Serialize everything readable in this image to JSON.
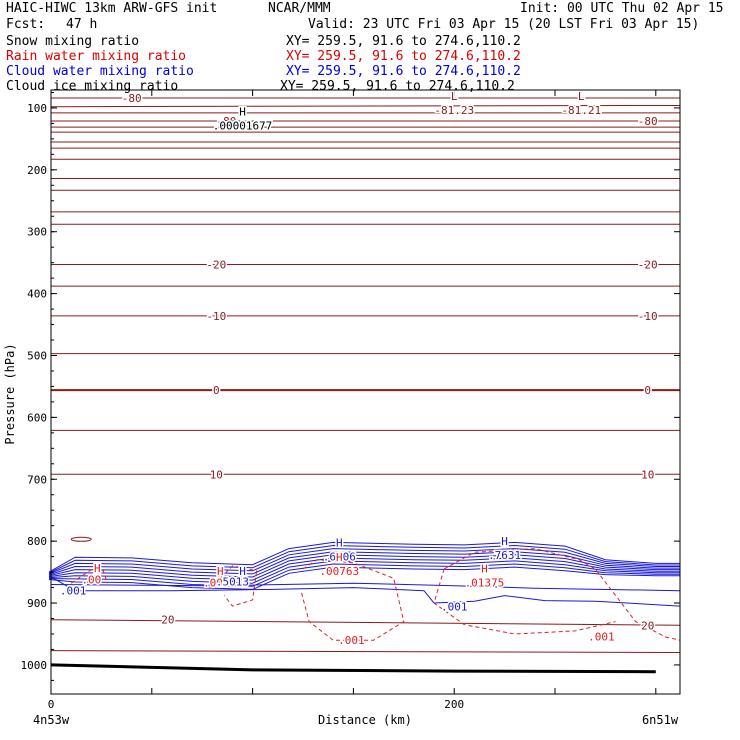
{
  "header": {
    "model": "HAIC-HIWC 13km ARW-GFS init",
    "org": "NCAR/MMM",
    "init": "Init: 00 UTC Thu 02 Apr 15",
    "fcst_label": "Fcst:",
    "fcst_value": "47 h",
    "valid": "Valid: 23 UTC Fri 03 Apr 15 (20 LST Fri 03 Apr 15)"
  },
  "fields": [
    {
      "name": "Snow mixing ratio",
      "xy": "XY= 259.5, 91.6 to 274.6,110.2",
      "color": "#000000"
    },
    {
      "name": "Rain water mixing ratio",
      "xy": "XY= 259.5, 91.6 to 274.6,110.2",
      "color": "#e00000"
    },
    {
      "name": "Cloud water mixing ratio",
      "xy": "XY= 259.5, 91.6 to 274.6,110.2",
      "color": "#0000e0"
    },
    {
      "name": "Cloud ice mixing ratio",
      "xy": "XY= 259.5, 91.6 to 274.6,110.2",
      "color": "#000000"
    }
  ],
  "chart_data": {
    "type": "contour",
    "xlabel": "Distance (km)",
    "ylabel": "Pressure (hPa)",
    "xlim": [
      0,
      312
    ],
    "ylim": [
      1047,
      71
    ],
    "x_ticks": [
      0,
      200
    ],
    "y_ticks": [
      100,
      200,
      300,
      400,
      500,
      600,
      700,
      800,
      900,
      1000
    ],
    "corner_labels": {
      "left": "4n53w",
      "right": "6n51w"
    },
    "colors": {
      "temperature": "#8b1a1a",
      "cloud_water": "#1a1ad6",
      "rain": "#e02020",
      "ground": "#000000"
    },
    "temperature_contours": [
      {
        "label": "-80",
        "p_left": 84,
        "p_right": 84
      },
      {
        "label": "",
        "p_left": 98,
        "p_right": 96
      },
      {
        "label": "",
        "p_left": 108,
        "p_right": 108
      },
      {
        "label": "-80",
        "p_left": 121,
        "p_right": 121
      },
      {
        "label": "",
        "p_left": 131,
        "p_right": 131
      },
      {
        "label": "",
        "p_left": 139,
        "p_right": 139
      },
      {
        "label": "",
        "p_left": 155,
        "p_right": 155
      },
      {
        "label": "",
        "p_left": 165,
        "p_right": 165
      },
      {
        "label": "",
        "p_left": 183,
        "p_right": 183
      },
      {
        "label": "",
        "p_left": 214,
        "p_right": 214
      },
      {
        "label": "",
        "p_left": 233,
        "p_right": 233
      },
      {
        "label": "",
        "p_left": 268,
        "p_right": 268
      },
      {
        "label": "",
        "p_left": 288,
        "p_right": 288
      },
      {
        "label": "-20",
        "p_left": 353,
        "p_right": 353
      },
      {
        "label": "",
        "p_left": 388,
        "p_right": 388
      },
      {
        "label": "-10",
        "p_left": 436,
        "p_right": 436
      },
      {
        "label": "",
        "p_left": 497,
        "p_right": 497
      },
      {
        "label": "0",
        "p_left": 556,
        "p_right": 556
      },
      {
        "label": "",
        "p_left": 621,
        "p_right": 621
      },
      {
        "label": "10",
        "p_left": 692,
        "p_right": 692
      },
      {
        "label": "20",
        "p_left": 927,
        "p_right": 936
      },
      {
        "label": "",
        "p_left": 977,
        "p_right": 980
      }
    ],
    "extrema": [
      {
        "kind": "L",
        "value": "-81.23",
        "x": 200,
        "p": 97
      },
      {
        "kind": "L",
        "value": "-81.21",
        "x": 263,
        "p": 97
      },
      {
        "kind": "H",
        "value": ".00001677",
        "x": 95,
        "p": 122
      },
      {
        "kind": "H",
        "value": ".6606",
        "x": 143,
        "p": 818
      },
      {
        "kind": "H",
        "value": ".7631",
        "x": 225,
        "p": 816
      },
      {
        "kind": "H",
        "value": ".00763",
        "x": 143,
        "p": 842
      },
      {
        "kind": "H",
        "value": ".01375",
        "x": 215,
        "p": 860
      }
    ],
    "field_labels": [
      {
        "text": "H",
        "x": 23,
        "p": 843,
        "color": "#e02020"
      },
      {
        "text": ".00",
        "x": 20,
        "p": 862,
        "color": "#e02020"
      },
      {
        "text": ".001",
        "x": 11,
        "p": 880,
        "color": "#1a1ad6"
      },
      {
        "text": "H",
        "x": 84,
        "p": 848,
        "color": "#e02020"
      },
      {
        "text": "H",
        "x": 95,
        "p": 848,
        "color": "#1a1ad6"
      },
      {
        "text": ".001",
        "x": 82,
        "p": 867,
        "color": "#e02020"
      },
      {
        "text": ".5013",
        "x": 90,
        "p": 865,
        "color": "#1a1ad6"
      },
      {
        "text": ".001",
        "x": 200,
        "p": 906,
        "color": "#1a1ad6"
      },
      {
        "text": ".001",
        "x": 149,
        "p": 960,
        "color": "#e02020"
      },
      {
        "text": ".001",
        "x": 273,
        "p": 954,
        "color": "#e02020"
      },
      {
        "text": "-80",
        "x": 296,
        "p": 121,
        "color": "#8b1a1a"
      },
      {
        "text": "-20",
        "x": 296,
        "p": 353,
        "color": "#8b1a1a"
      },
      {
        "text": "-10",
        "x": 296,
        "p": 436,
        "color": "#8b1a1a"
      },
      {
        "text": "0",
        "x": 296,
        "p": 556,
        "color": "#8b1a1a"
      },
      {
        "text": "10",
        "x": 296,
        "p": 692,
        "color": "#8b1a1a"
      },
      {
        "text": "20",
        "x": 296,
        "p": 936,
        "color": "#8b1a1a"
      }
    ],
    "surface_pressure": [
      [
        0,
        1000
      ],
      [
        100,
        1008
      ],
      [
        200,
        1010
      ],
      [
        300,
        1011
      ]
    ]
  }
}
